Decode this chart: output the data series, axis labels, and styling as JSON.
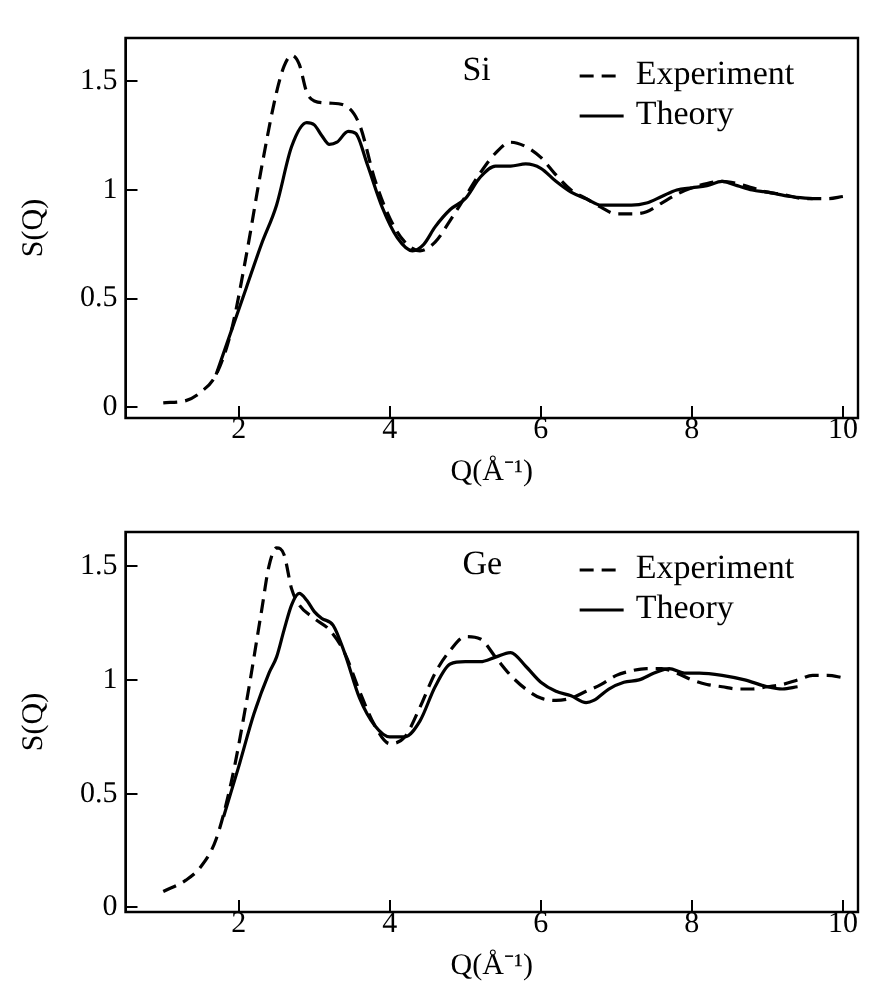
{
  "chart_data": [
    {
      "type": "line",
      "xlabel": "Q(Å⁻¹)",
      "ylabel": "S(Q)",
      "annotations": [
        "Si"
      ],
      "legend": "top right",
      "grid": false,
      "xlim": [
        0.5,
        10.2
      ],
      "xticks": [
        2,
        4,
        6,
        8,
        10
      ],
      "ylim": [
        -0.05,
        1.7
      ],
      "yticks": [
        0,
        0.5,
        1,
        1.5
      ],
      "series": [
        {
          "name": "Experiment",
          "color": "#000000",
          "line_style": "dashed",
          "x": [
            1.0,
            1.3,
            1.5,
            1.7,
            1.9,
            2.1,
            2.3,
            2.5,
            2.6,
            2.7,
            2.8,
            2.9,
            3.0,
            3.2,
            3.4,
            3.6,
            3.8,
            4.0,
            4.2,
            4.4,
            4.6,
            4.8,
            5.0,
            5.2,
            5.4,
            5.6,
            5.8,
            6.0,
            6.2,
            6.4,
            6.6,
            6.8,
            7.0,
            7.2,
            7.4,
            7.6,
            7.8,
            8.0,
            8.2,
            8.4,
            8.6,
            8.8,
            9.0,
            9.2,
            9.5,
            9.8,
            10.0
          ],
          "values": [
            0.02,
            0.03,
            0.07,
            0.15,
            0.35,
            0.7,
            1.1,
            1.45,
            1.57,
            1.62,
            1.58,
            1.45,
            1.41,
            1.4,
            1.39,
            1.3,
            1.05,
            0.87,
            0.76,
            0.72,
            0.76,
            0.86,
            0.97,
            1.08,
            1.17,
            1.22,
            1.2,
            1.15,
            1.07,
            1.0,
            0.96,
            0.92,
            0.89,
            0.89,
            0.9,
            0.94,
            0.98,
            1.01,
            1.03,
            1.04,
            1.03,
            1.01,
            0.99,
            0.98,
            0.96,
            0.96,
            0.97
          ]
        },
        {
          "name": "Theory",
          "color": "#000000",
          "line_style": "solid",
          "x": [
            1.7,
            1.9,
            2.1,
            2.3,
            2.5,
            2.7,
            2.9,
            3.0,
            3.1,
            3.2,
            3.3,
            3.45,
            3.55,
            3.7,
            3.9,
            4.1,
            4.3,
            4.45,
            4.6,
            4.8,
            5.0,
            5.2,
            5.4,
            5.6,
            5.8,
            6.0,
            6.2,
            6.4,
            6.6,
            6.8,
            7.0,
            7.2,
            7.4,
            7.6,
            7.8,
            8.0,
            8.2,
            8.4,
            8.6,
            8.8,
            9.0,
            9.3,
            9.6
          ],
          "values": [
            0.15,
            0.35,
            0.55,
            0.75,
            0.93,
            1.2,
            1.31,
            1.3,
            1.25,
            1.21,
            1.22,
            1.27,
            1.26,
            1.12,
            0.92,
            0.78,
            0.72,
            0.75,
            0.83,
            0.91,
            0.96,
            1.06,
            1.11,
            1.11,
            1.12,
            1.1,
            1.04,
            0.99,
            0.96,
            0.93,
            0.93,
            0.93,
            0.94,
            0.97,
            1.0,
            1.01,
            1.02,
            1.04,
            1.02,
            1.0,
            0.99,
            0.97,
            0.96
          ]
        }
      ]
    },
    {
      "type": "line",
      "xlabel": "Q(Å⁻¹)",
      "ylabel": "S(Q)",
      "annotations": [
        "Ge"
      ],
      "legend": "top right",
      "grid": false,
      "xlim": [
        0.5,
        10.2
      ],
      "xticks": [
        2,
        4,
        6,
        8,
        10
      ],
      "ylim": [
        -0.02,
        1.65
      ],
      "yticks": [
        0,
        0.5,
        1,
        1.5
      ],
      "series": [
        {
          "name": "Experiment",
          "color": "#000000",
          "line_style": "dashed",
          "x": [
            1.0,
            1.3,
            1.5,
            1.7,
            1.9,
            2.1,
            2.3,
            2.4,
            2.5,
            2.6,
            2.7,
            2.8,
            3.0,
            3.2,
            3.4,
            3.6,
            3.8,
            4.0,
            4.2,
            4.4,
            4.6,
            4.8,
            5.0,
            5.2,
            5.4,
            5.6,
            5.8,
            6.0,
            6.2,
            6.4,
            6.6,
            6.8,
            7.0,
            7.2,
            7.4,
            7.6,
            7.8,
            8.0,
            8.2,
            8.4,
            8.6,
            8.8,
            9.0,
            9.2,
            9.4,
            9.6,
            9.8,
            10.0
          ],
          "values": [
            0.07,
            0.12,
            0.18,
            0.3,
            0.55,
            0.9,
            1.3,
            1.5,
            1.58,
            1.55,
            1.4,
            1.33,
            1.27,
            1.22,
            1.12,
            0.95,
            0.8,
            0.72,
            0.75,
            0.88,
            1.03,
            1.13,
            1.19,
            1.18,
            1.1,
            1.02,
            0.96,
            0.92,
            0.91,
            0.92,
            0.95,
            0.98,
            1.02,
            1.04,
            1.05,
            1.05,
            1.03,
            1.0,
            0.98,
            0.97,
            0.96,
            0.96,
            0.97,
            0.98,
            1.0,
            1.02,
            1.02,
            1.01
          ]
        },
        {
          "name": "Theory",
          "color": "#000000",
          "line_style": "solid",
          "x": [
            1.8,
            2.0,
            2.2,
            2.4,
            2.5,
            2.6,
            2.7,
            2.8,
            2.9,
            3.0,
            3.1,
            3.25,
            3.4,
            3.6,
            3.8,
            4.0,
            4.2,
            4.4,
            4.6,
            4.8,
            5.0,
            5.2,
            5.4,
            5.6,
            5.8,
            6.0,
            6.2,
            6.4,
            6.6,
            6.7,
            6.9,
            7.1,
            7.3,
            7.5,
            7.7,
            7.9,
            8.1,
            8.4,
            8.7,
            9.0,
            9.2,
            9.4
          ],
          "values": [
            0.4,
            0.62,
            0.85,
            1.03,
            1.1,
            1.22,
            1.33,
            1.38,
            1.35,
            1.3,
            1.27,
            1.24,
            1.12,
            0.92,
            0.8,
            0.75,
            0.75,
            0.82,
            0.97,
            1.07,
            1.08,
            1.08,
            1.1,
            1.12,
            1.06,
            0.99,
            0.95,
            0.93,
            0.9,
            0.91,
            0.96,
            0.99,
            1.0,
            1.03,
            1.05,
            1.03,
            1.03,
            1.02,
            1.0,
            0.97,
            0.96,
            0.97
          ]
        }
      ]
    }
  ]
}
